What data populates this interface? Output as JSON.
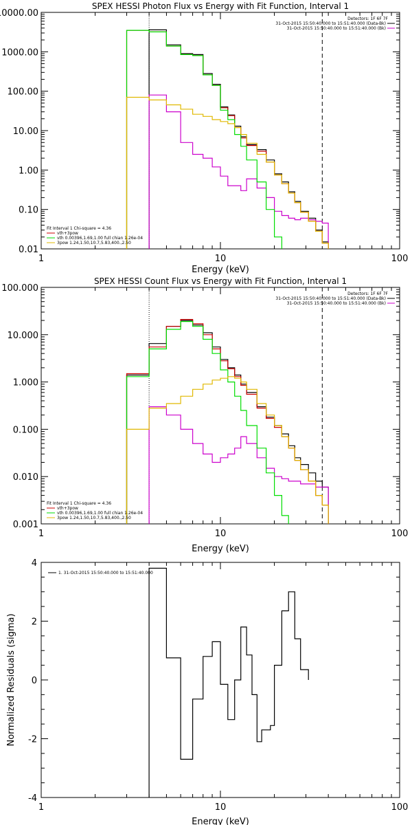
{
  "chart_data": [
    {
      "type": "line",
      "title": "SPEX HESSI Photon Flux vs Energy with Fit Function, Interval 1",
      "xlabel": "Energy (keV)",
      "ylabel": "",
      "xscale": "log",
      "yscale": "log",
      "xlim": [
        1,
        100
      ],
      "ylim": [
        0.01,
        10000
      ],
      "xticks": [
        "1",
        "10",
        "100"
      ],
      "yticks": [
        "0.01",
        "0.10",
        "1.00",
        "10.00",
        "100.00",
        "1000.00",
        "10000.00"
      ],
      "header_lines": [
        "Detectors: 1F 6F 7F",
        "31-Oct-2015 15:50:40.000 to 15:51:40.000 (Data-Bk)",
        "31-Oct-2015 15:50:40.000 to 15:51:40.000 (Bk)"
      ],
      "legend_lines": [
        "Fit Interval 1   Chi-square = 4.36",
        "vth+3pow",
        "vth 0.00396,1.69,1.00  full chian 1.26e-04",
        "3pow 1.24,1.50,10.7,5.83,400.,2.50"
      ],
      "edges": [
        3,
        4,
        5,
        6,
        7,
        8,
        9,
        10,
        11,
        12,
        13,
        14,
        16,
        18,
        20,
        22,
        24,
        26,
        28,
        31,
        34,
        37,
        40
      ],
      "vlines": {
        "dotted": 4,
        "dashed": 37
      },
      "series": [
        {
          "name": "31-Oct-2015 15:50:40.000 to 15:51:40.000 (Data-Bk)",
          "color": "#000000",
          "values": [
            null,
            3600,
            1500,
            900,
            850,
            280,
            150,
            40,
            25,
            13,
            7,
            4.4,
            3.3,
            1.8,
            0.8,
            0.5,
            0.28,
            0.16,
            0.09,
            0.06,
            0.03,
            0.015
          ]
        },
        {
          "name": "31-Oct-2015 15:50:40.000 to 15:51:40.000 (Bk)",
          "color": "#cc00cc",
          "values": [
            null,
            80,
            30,
            5,
            2.5,
            2.0,
            1.2,
            0.7,
            0.4,
            0.4,
            0.3,
            0.6,
            0.35,
            0.2,
            0.09,
            0.07,
            0.06,
            0.055,
            0.06,
            0.055,
            0.05,
            0.045
          ]
        },
        {
          "name": "vth+3pow",
          "color": "#cc0000",
          "values": [
            3500,
            3200,
            1400,
            850,
            800,
            260,
            140,
            38,
            24,
            12,
            6.5,
            4.2,
            3.0,
            1.6,
            0.75,
            0.45,
            0.26,
            0.15,
            0.085,
            0.05,
            0.028,
            0.014
          ]
        },
        {
          "name": "vth",
          "color": "#00dd00",
          "values": [
            3500,
            3200,
            1400,
            850,
            800,
            260,
            140,
            33,
            19,
            8,
            4,
            1.8,
            0.5,
            0.1,
            0.02,
            null,
            null,
            null,
            null,
            null,
            null,
            null
          ]
        },
        {
          "name": "3pow",
          "color": "#e0b800",
          "values": [
            70,
            60,
            45,
            35,
            26,
            23,
            19,
            17,
            15,
            12,
            8,
            4.8,
            2.5,
            1.6,
            0.75,
            0.45,
            0.26,
            0.15,
            0.085,
            0.05,
            0.028,
            0.014
          ]
        }
      ]
    },
    {
      "type": "line",
      "title": "SPEX HESSI Count Flux vs Energy with Fit Function, Interval 1",
      "xlabel": "Energy (keV)",
      "ylabel": "",
      "xscale": "log",
      "yscale": "log",
      "xlim": [
        1,
        100
      ],
      "ylim": [
        0.001,
        100
      ],
      "xticks": [
        "1",
        "10",
        "100"
      ],
      "yticks": [
        "0.001",
        "0.010",
        "0.100",
        "1.000",
        "10.000",
        "100.000"
      ],
      "header_lines": [
        "Detectors: 1F 6F 7F",
        "31-Oct-2015 15:50:40.000 to 15:51:40.000 (Data-Bk)",
        "31-Oct-2015 15:50:40.000 to 15:51:40.000 (Bk)"
      ],
      "legend_lines": [
        "Fit Interval 1   Chi-square = 4.36",
        "vth+3pow",
        "vth 0.00396,1.69,1.00  full chian 1.26e-04",
        "3pow 1.24,1.50,10.7,5.83,400.,2.50"
      ],
      "edges": [
        3,
        4,
        5,
        6,
        7,
        8,
        9,
        10,
        11,
        12,
        13,
        14,
        16,
        18,
        20,
        22,
        24,
        26,
        28,
        31,
        34,
        37,
        40
      ],
      "vlines": {
        "dotted": 4,
        "dashed": 37
      },
      "series": [
        {
          "name": "31-Oct-2015 15:50:40.000 to 15:51:40.000 (Data-Bk)",
          "color": "#000000",
          "values": [
            1.4,
            6.5,
            15,
            20,
            16,
            11,
            5.5,
            3.0,
            2.0,
            1.4,
            0.9,
            0.6,
            0.3,
            0.18,
            0.12,
            0.08,
            0.045,
            0.025,
            0.018,
            0.012,
            0.008,
            0.006
          ]
        },
        {
          "name": "31-Oct-2015 15:50:40.000 to 15:51:40.000 (Bk)",
          "color": "#cc00cc",
          "values": [
            null,
            0.3,
            0.2,
            0.1,
            0.05,
            0.03,
            0.02,
            0.025,
            0.03,
            0.04,
            0.07,
            0.05,
            0.025,
            0.015,
            0.01,
            0.009,
            0.008,
            0.008,
            0.007,
            0.007,
            0.006,
            0.006
          ]
        },
        {
          "name": "vth+3pow",
          "color": "#cc0000",
          "values": [
            1.5,
            5.5,
            15,
            21,
            17,
            10,
            5.0,
            2.8,
            1.9,
            1.3,
            0.85,
            0.55,
            0.28,
            0.17,
            0.11,
            0.07,
            0.04,
            0.022,
            0.014,
            0.008,
            0.004,
            0.0025
          ]
        },
        {
          "name": "vth",
          "color": "#00dd00",
          "values": [
            1.3,
            5.0,
            13,
            19,
            15,
            8,
            4.0,
            1.8,
            1.0,
            0.5,
            0.25,
            0.12,
            0.04,
            0.012,
            0.004,
            0.0015,
            null,
            null,
            null,
            null,
            null,
            null
          ]
        },
        {
          "name": "3pow",
          "color": "#e0b800",
          "values": [
            0.1,
            0.28,
            0.35,
            0.5,
            0.7,
            0.9,
            1.1,
            1.2,
            1.3,
            1.2,
            1.0,
            0.7,
            0.35,
            0.2,
            0.12,
            0.07,
            0.04,
            0.022,
            0.014,
            0.008,
            0.004,
            0.0025
          ]
        }
      ]
    },
    {
      "type": "line",
      "title": "",
      "xlabel": "Energy (keV)",
      "ylabel": "Normalized Residuals (sigma)",
      "xscale": "log",
      "yscale": "linear",
      "xlim": [
        1,
        100
      ],
      "ylim": [
        -4,
        4
      ],
      "xticks": [
        "1",
        "10",
        "100"
      ],
      "yticks": [
        "-4",
        "-2",
        "0",
        "2",
        "4"
      ],
      "legend_lines": [
        "1. 31-Oct-2015 15:50:40.000 to 15:51:40.000"
      ],
      "edges": [
        4,
        5,
        6,
        7,
        8,
        9,
        10,
        11,
        12,
        13,
        14,
        15,
        16,
        17,
        19,
        20,
        22,
        24,
        26,
        28,
        31,
        34,
        37
      ],
      "series": [
        {
          "name": "1. 31-Oct-2015 15:50:40.000 to 15:51:40.000",
          "color": "#000000",
          "values": [
            3.8,
            0.75,
            -2.7,
            -0.65,
            0.8,
            1.3,
            -0.15,
            -1.35,
            0.0,
            1.8,
            0.85,
            -0.5,
            -2.1,
            -1.7,
            -1.55,
            0.5,
            2.35,
            3.0,
            1.4,
            0.35,
            null,
            null
          ]
        }
      ]
    }
  ]
}
